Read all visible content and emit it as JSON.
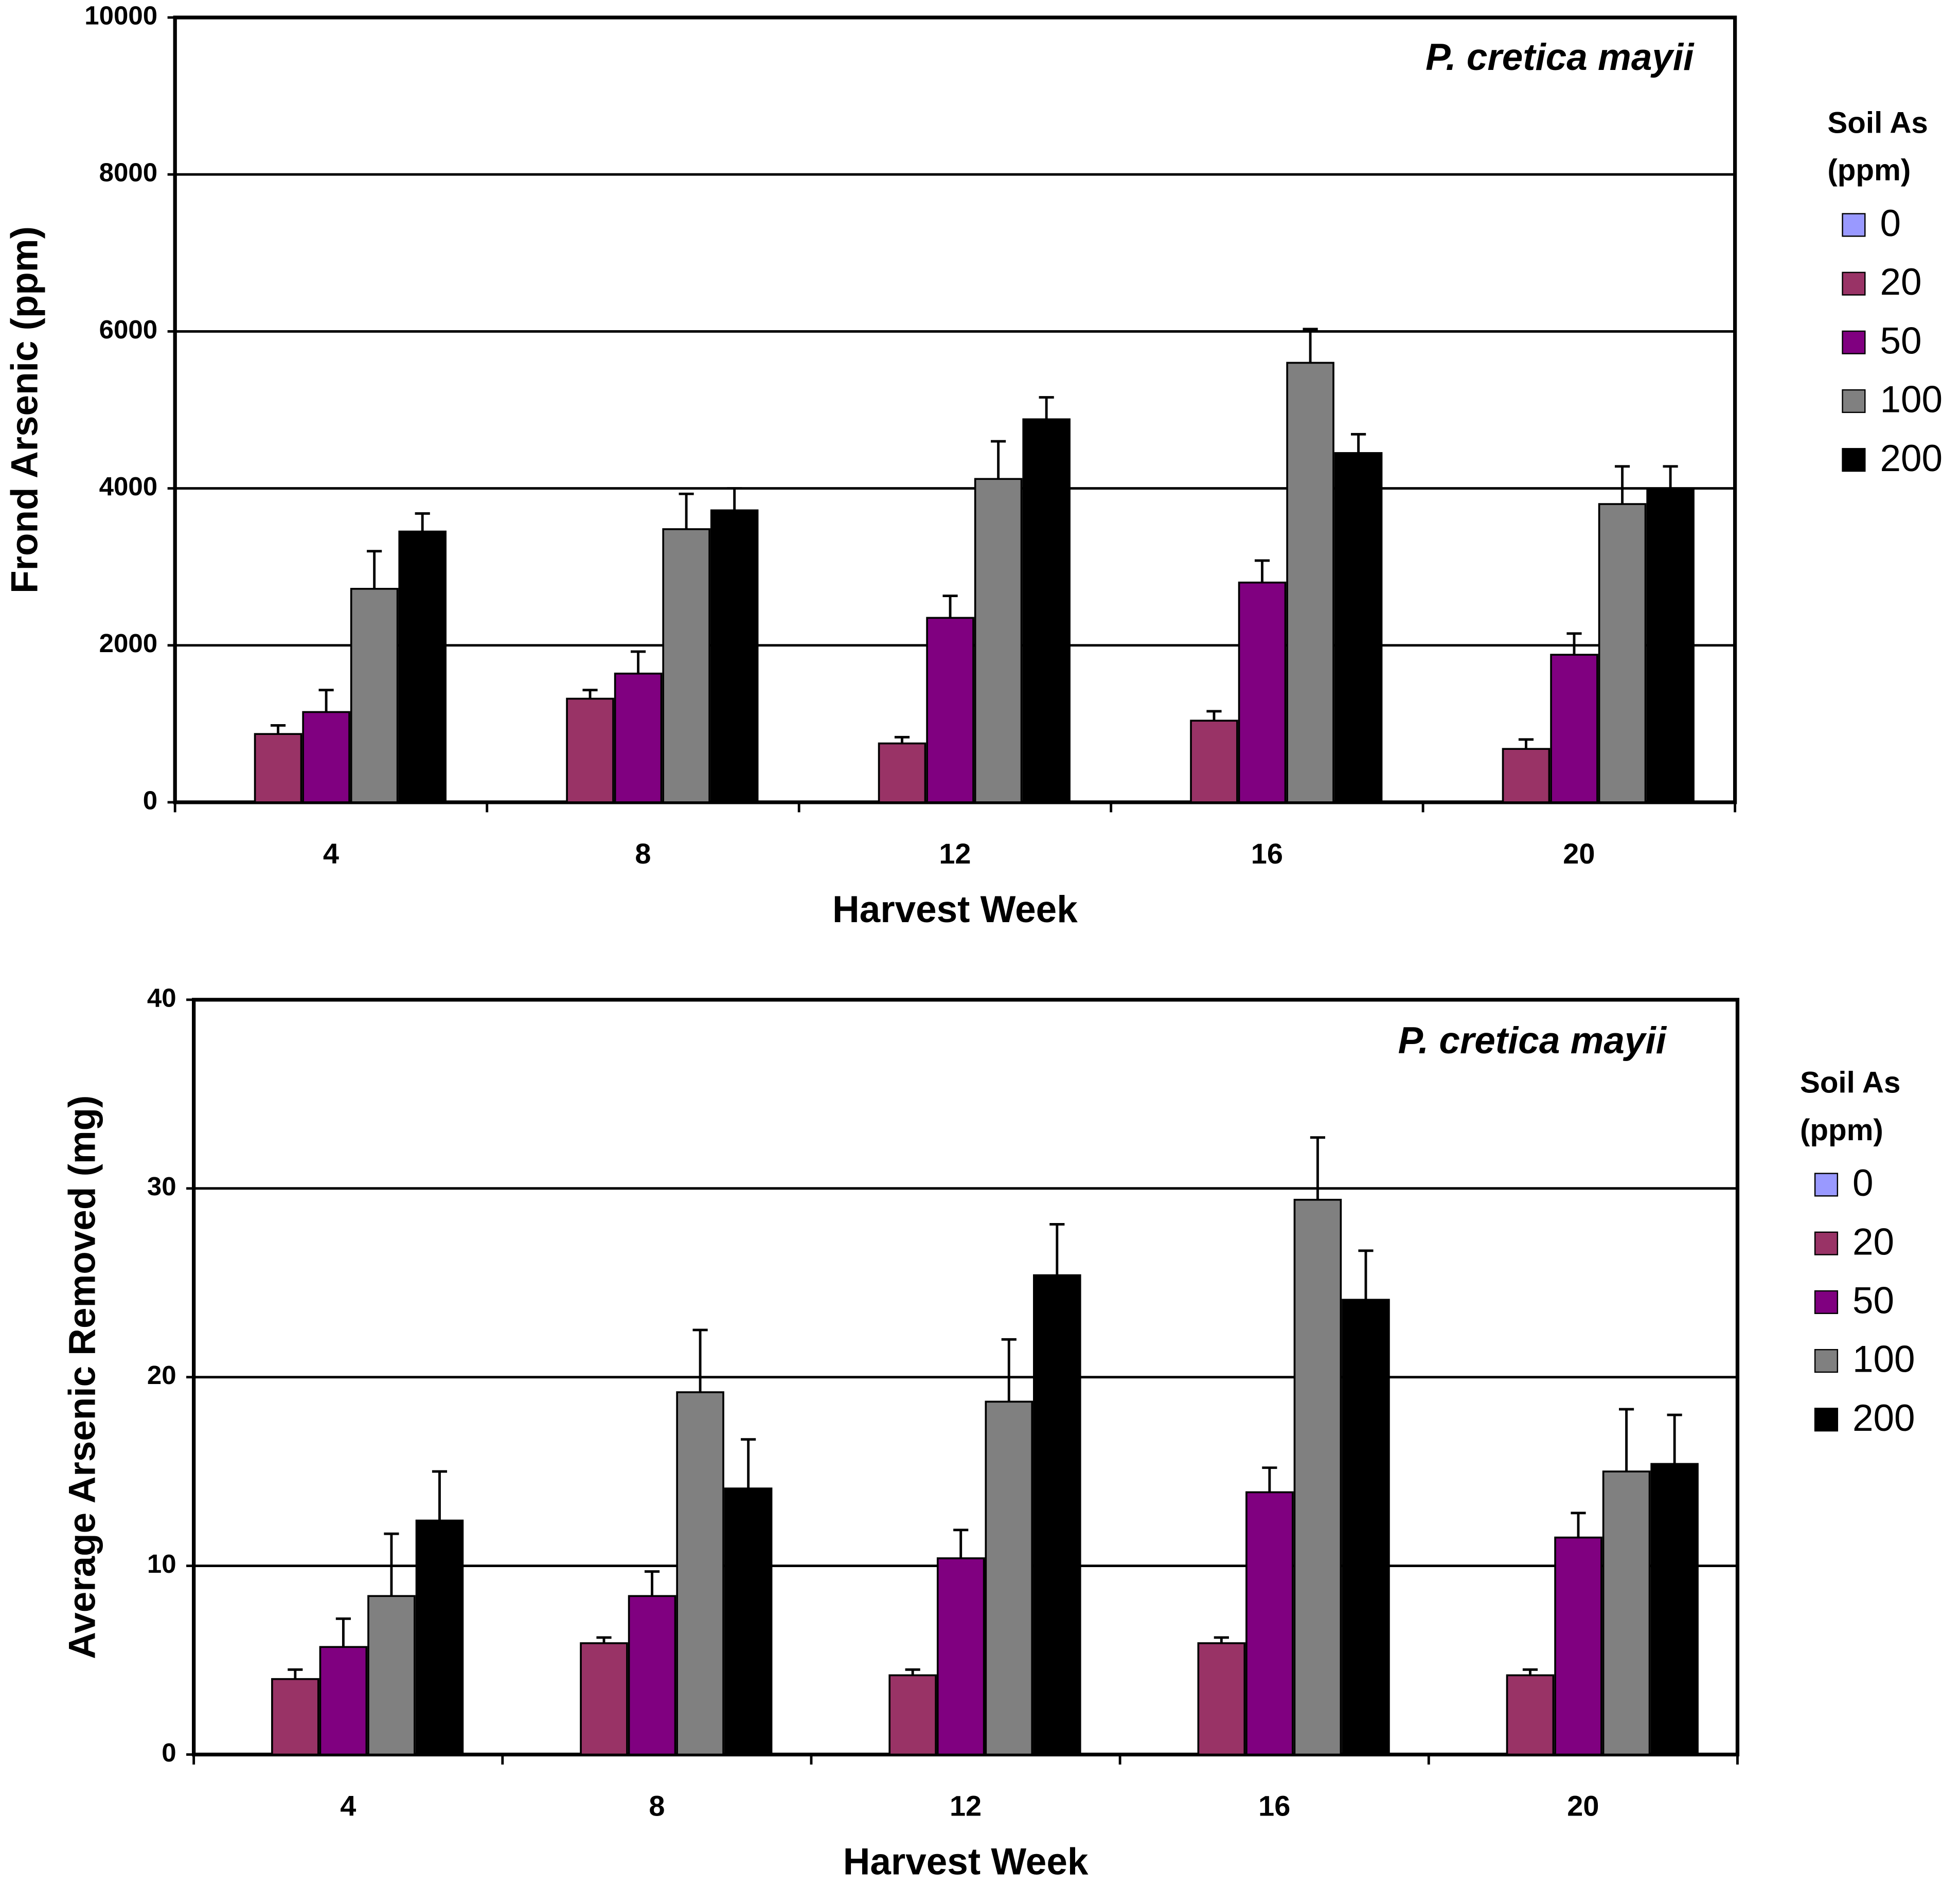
{
  "chart_data": [
    {
      "type": "bar",
      "annotation": "P. cretica mayii",
      "x_label": "Harvest Week",
      "y_label": "Frond Arsenic (ppm)",
      "legend_title": [
        "Soil As",
        "(ppm)"
      ],
      "legend": "right",
      "grid": true,
      "categories": [
        "4",
        "8",
        "12",
        "16",
        "20"
      ],
      "ylim": [
        0,
        10000
      ],
      "yticks": [
        0,
        2000,
        4000,
        6000,
        8000,
        10000
      ],
      "series": [
        {
          "name": "0",
          "color": "#9999ff",
          "values": [
            0,
            0,
            0,
            0,
            0
          ],
          "errors": [
            0,
            0,
            0,
            0,
            0
          ]
        },
        {
          "name": "20",
          "color": "#993366",
          "values": [
            870,
            1320,
            750,
            1040,
            680
          ],
          "errors": [
            110,
            110,
            80,
            120,
            120
          ]
        },
        {
          "name": "50",
          "color": "#800080",
          "values": [
            1150,
            1640,
            2350,
            2800,
            1880
          ],
          "errors": [
            280,
            280,
            280,
            280,
            270
          ]
        },
        {
          "name": "100",
          "color": "#808080",
          "values": [
            2720,
            3480,
            4120,
            5600,
            3800
          ],
          "errors": [
            480,
            450,
            480,
            430,
            480
          ]
        },
        {
          "name": "200",
          "color": "#000000",
          "values": [
            3450,
            3720,
            4880,
            4450,
            3980
          ],
          "errors": [
            230,
            280,
            280,
            240,
            300
          ]
        }
      ]
    },
    {
      "type": "bar",
      "annotation": "P. cretica mayii",
      "x_label": "Harvest Week",
      "y_label": "Average Arsenic Removed (mg)",
      "legend_title": [
        "Soil As",
        "(ppm)"
      ],
      "legend": "right",
      "grid": true,
      "categories": [
        "4",
        "8",
        "12",
        "16",
        "20"
      ],
      "ylim": [
        0,
        40
      ],
      "yticks": [
        0,
        10,
        20,
        30,
        40
      ],
      "series": [
        {
          "name": "0",
          "color": "#9999ff",
          "values": [
            0,
            0,
            0,
            0,
            0
          ],
          "errors": [
            0,
            0,
            0,
            0,
            0
          ]
        },
        {
          "name": "20",
          "color": "#993366",
          "values": [
            4.0,
            5.9,
            4.2,
            5.9,
            4.2
          ],
          "errors": [
            0.5,
            0.3,
            0.3,
            0.3,
            0.3
          ]
        },
        {
          "name": "50",
          "color": "#800080",
          "values": [
            5.7,
            8.4,
            10.4,
            13.9,
            11.5
          ],
          "errors": [
            1.5,
            1.3,
            1.5,
            1.3,
            1.3
          ]
        },
        {
          "name": "100",
          "color": "#808080",
          "values": [
            8.4,
            19.2,
            18.7,
            29.4,
            15.0
          ],
          "errors": [
            3.3,
            3.3,
            3.3,
            3.3,
            3.3
          ]
        },
        {
          "name": "200",
          "color": "#000000",
          "values": [
            12.4,
            14.1,
            25.4,
            24.1,
            15.4
          ],
          "errors": [
            2.6,
            2.6,
            2.7,
            2.6,
            2.6
          ]
        }
      ]
    }
  ]
}
